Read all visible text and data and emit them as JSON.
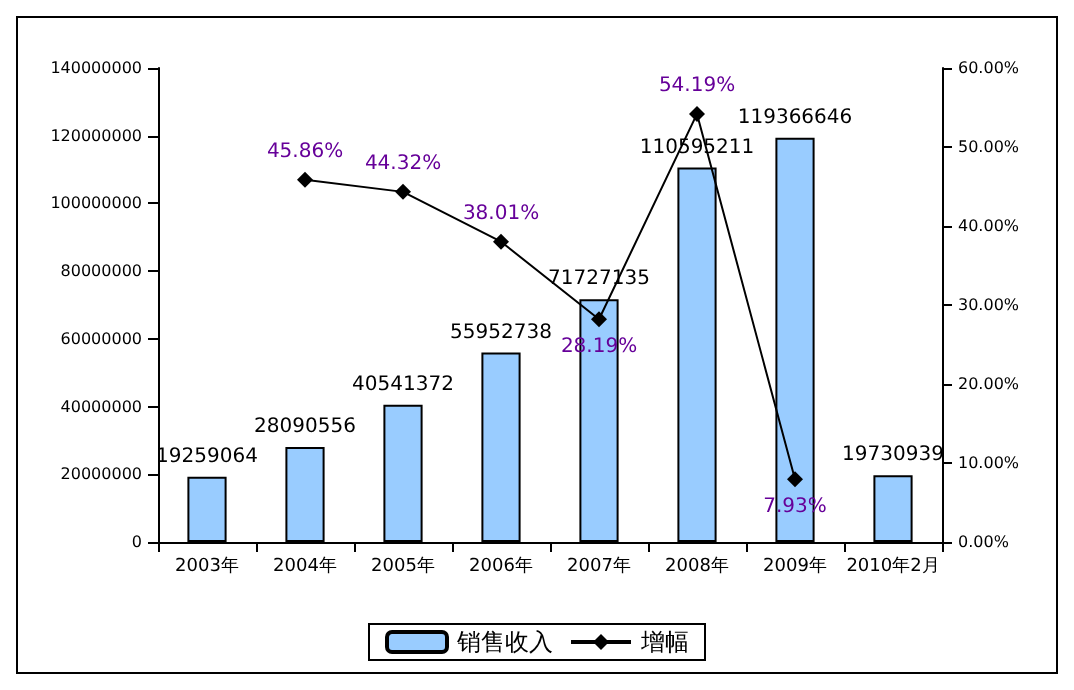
{
  "chart_data": {
    "type": "bar",
    "categories": [
      "2003年",
      "2004年",
      "2005年",
      "2006年",
      "2007年",
      "2008年",
      "2009年",
      "2010年2月"
    ],
    "series": [
      {
        "name": "销售收入",
        "color": "#99ccff",
        "values": [
          19259064,
          28090556,
          40541372,
          55952738,
          71727135,
          110595211,
          119366646,
          19730939
        ]
      },
      {
        "name": "增幅",
        "type": "line",
        "axis": "y2",
        "color": "#000000",
        "marker": "diamond",
        "values": [
          null,
          45.86,
          44.32,
          38.01,
          28.19,
          54.19,
          7.93,
          null
        ],
        "value_labels": [
          null,
          "45.86%",
          "44.32%",
          "38.01%",
          "28.19%",
          "54.19%",
          "7.93%",
          null
        ]
      }
    ],
    "data_labels": true,
    "ylim": [
      0,
      140000000
    ],
    "yticks": [
      0,
      20000000,
      40000000,
      60000000,
      80000000,
      100000000,
      120000000,
      140000000
    ],
    "y2lim": [
      0,
      60
    ],
    "y2ticks": [
      {
        "value": 0,
        "label": "0.00%"
      },
      {
        "value": 10,
        "label": "10.00%"
      },
      {
        "value": 20,
        "label": "20.00%"
      },
      {
        "value": 30,
        "label": "30.00%"
      },
      {
        "value": 40,
        "label": "40.00%"
      },
      {
        "value": 50,
        "label": "50.00%"
      },
      {
        "value": 60,
        "label": "60.00%"
      }
    ],
    "grid": false,
    "legend": "bottom"
  }
}
